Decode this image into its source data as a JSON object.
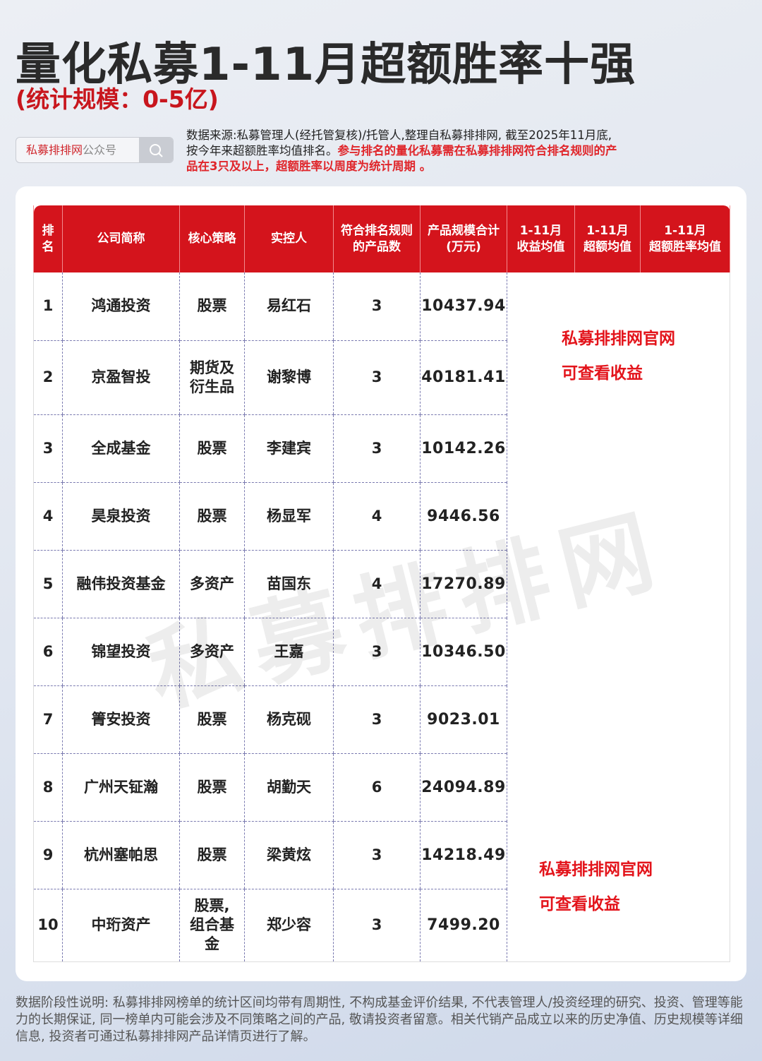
{
  "title": "量化私募1-11月超额胜率十强",
  "subtitle": "(统计规模：0-5亿)",
  "search": {
    "brand": "私募排排网",
    "suffix": "公众号",
    "icon": "search-icon"
  },
  "source": {
    "text": "数据来源:私募管理人(经托管复核)/托管人,整理自私募排排网, 截至2025年11月底, 按今年来超额胜率均值排名。",
    "highlight": "参与排名的量化私募需在私募排排网符合排名规则的产品在3只及以上，超额胜率以周度为统计周期 。"
  },
  "table": {
    "headers": [
      "排名",
      "公司简称",
      "核心策略",
      "实控人",
      "符合排名规则的产品数",
      "产品规模合计(万元)",
      "1-11月收益均值",
      "1-11月超额均值",
      "1-11月超额胜率均值"
    ],
    "rows": [
      [
        "1",
        "鸿通投资",
        "股票",
        "易红石",
        "3",
        "10437.94"
      ],
      [
        "2",
        "京盈智投",
        "期货及衍生品",
        "谢黎博",
        "3",
        "40181.41"
      ],
      [
        "3",
        "全成基金",
        "股票",
        "李建宾",
        "3",
        "10142.26"
      ],
      [
        "4",
        "昊泉投资",
        "股票",
        "杨显军",
        "4",
        "9446.56"
      ],
      [
        "5",
        "融伟投资基金",
        "多资产",
        "苗国东",
        "4",
        "17270.89"
      ],
      [
        "6",
        "锦望投资",
        "多资产",
        "王嘉",
        "3",
        "10346.50"
      ],
      [
        "7",
        "箐安投资",
        "股票",
        "杨克砚",
        "3",
        "9023.01"
      ],
      [
        "8",
        "广州天钲瀚",
        "股票",
        "胡勤天",
        "6",
        "24094.89"
      ],
      [
        "9",
        "杭州塞帕思",
        "股票",
        "梁黄炫",
        "3",
        "14218.49"
      ],
      [
        "10",
        "中珩资产",
        "股票,组合基金",
        "郑少容",
        "3",
        "7499.20"
      ]
    ]
  },
  "notes": [
    {
      "line1": "私募排排网官网",
      "line2": "可查看收益"
    },
    {
      "line1": "私募排排网官网",
      "line2": "可查看收益"
    }
  ],
  "watermark": "私募排排网",
  "footer": "数据阶段性说明: 私募排排网榜单的统计区间均带有周期性, 不构成基金评价结果, 不代表管理人/投资经理的研究、投资、管理等能力的长期保证, 同一榜单内可能会涉及不同策略之间的产品, 敬请投资者留意。相关代销产品成立以来的历史净值、历史规模等详细信息, 投资者可通过私募排排网产品详情页进行了解。",
  "colors": {
    "accent": "#d4141c",
    "note": "#e3141b"
  }
}
